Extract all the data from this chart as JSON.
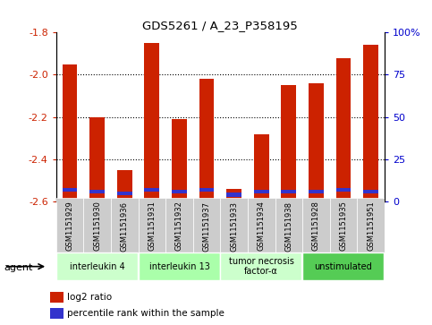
{
  "title": "GDS5261 / A_23_P358195",
  "samples": [
    "GSM1151929",
    "GSM1151930",
    "GSM1151936",
    "GSM1151931",
    "GSM1151932",
    "GSM1151937",
    "GSM1151933",
    "GSM1151934",
    "GSM1151938",
    "GSM1151928",
    "GSM1151935",
    "GSM1151951"
  ],
  "log2_values": [
    -1.95,
    -2.2,
    -2.45,
    -1.85,
    -2.21,
    -2.02,
    -2.54,
    -2.28,
    -2.05,
    -2.04,
    -1.92,
    -1.86
  ],
  "percentile_values": [
    7,
    6,
    5,
    7,
    6,
    7,
    4,
    6,
    6,
    6,
    7,
    6
  ],
  "ymin": -2.6,
  "ymax": -1.8,
  "yticks": [
    -2.6,
    -2.4,
    -2.2,
    -2.0,
    -1.8
  ],
  "right_yticks": [
    0,
    25,
    50,
    75,
    100
  ],
  "right_ytick_labels": [
    "0",
    "25",
    "50",
    "75",
    "100%"
  ],
  "bar_color": "#cc2200",
  "percentile_color": "#3333cc",
  "agent_groups": [
    {
      "label": "interleukin 4",
      "start": 0,
      "end": 3,
      "color": "#ccffcc"
    },
    {
      "label": "interleukin 13",
      "start": 3,
      "end": 6,
      "color": "#aaffaa"
    },
    {
      "label": "tumor necrosis\nfactor-α",
      "start": 6,
      "end": 9,
      "color": "#ccffcc"
    },
    {
      "label": "unstimulated",
      "start": 9,
      "end": 12,
      "color": "#55cc55"
    }
  ],
  "legend_items": [
    {
      "label": "log2 ratio",
      "color": "#cc2200"
    },
    {
      "label": "percentile rank within the sample",
      "color": "#3333cc"
    }
  ],
  "bar_width": 0.55,
  "tick_label_color_left": "#cc2200",
  "tick_label_color_right": "#0000cc",
  "bg_color": "#ffffff"
}
